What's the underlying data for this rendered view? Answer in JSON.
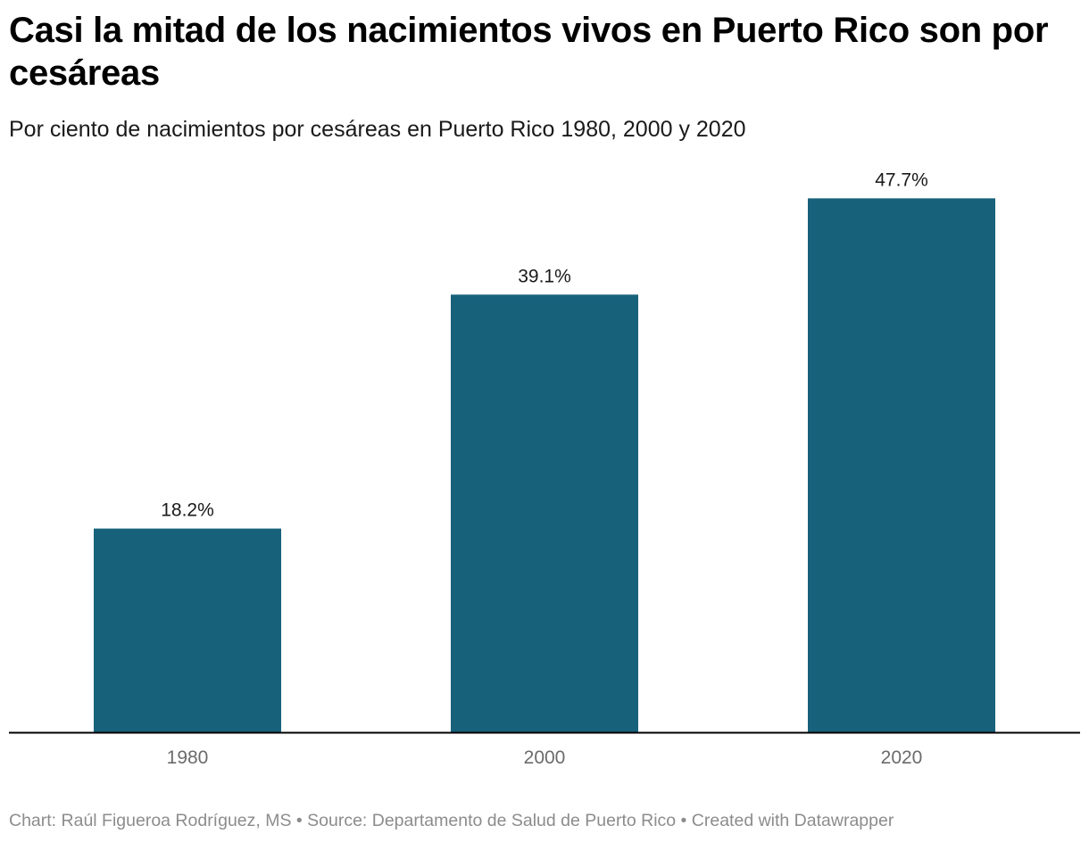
{
  "header": {
    "title": "Casi la mitad de los nacimientos vivos en Puerto Rico son por cesáreas",
    "subtitle": "Por ciento de nacimientos por cesáreas en Puerto Rico 1980, 2000 y 2020"
  },
  "colors": {
    "bar": "#17617b",
    "axis": "#000000",
    "tick_label": "#6b6b6b",
    "value_label": "#1a1a1a"
  },
  "chart_data": {
    "type": "bar",
    "title": "Casi la mitad de los nacimientos vivos en Puerto Rico son por cesáreas",
    "subtitle": "Por ciento de nacimientos por cesáreas en Puerto Rico 1980, 2000 y 2020",
    "categories": [
      "1980",
      "2000",
      "2020"
    ],
    "values": [
      18.2,
      39.1,
      47.7
    ],
    "value_labels": [
      "18.2%",
      "39.1%",
      "47.7%"
    ],
    "xlabel": "",
    "ylabel": "",
    "ylim": [
      0,
      50
    ],
    "grid": false
  },
  "footer": {
    "credit": "Chart: Raúl Figueroa Rodríguez, MS • Source: Departamento de Salud de Puerto Rico • Created with Datawrapper"
  }
}
